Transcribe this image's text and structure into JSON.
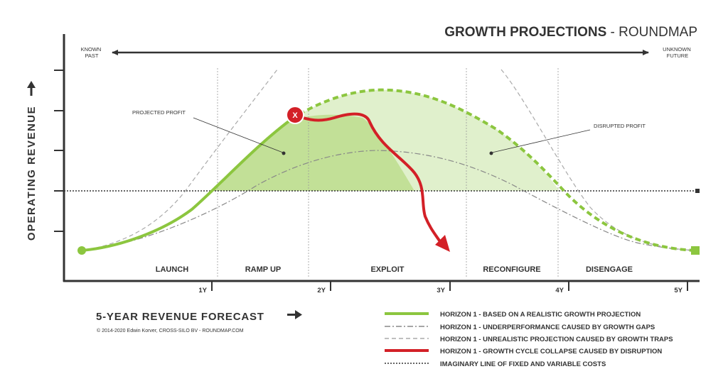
{
  "header": {
    "title_bold": "GROWTH PROJECTIONS",
    "title_sep": " - ",
    "title_light": "ROUNDMAP"
  },
  "timeline": {
    "left_label_lines": [
      "KNOWN",
      "PAST"
    ],
    "right_label_lines": [
      "UNKNOWN",
      "FUTURE"
    ]
  },
  "y_axis": {
    "label": "OPERATING REVENUE"
  },
  "x_axis": {
    "label": "5-YEAR REVENUE FORECAST",
    "ticks": [
      "1Y",
      "2Y",
      "3Y",
      "4Y",
      "5Y"
    ]
  },
  "phases": [
    "LAUNCH",
    "RAMP UP",
    "EXPLOIT",
    "RECONFIGURE",
    "DISENGAGE"
  ],
  "annotations": {
    "projected_profit": "PROJECTED PROFIT",
    "disrupted_profit": "DISRUPTED PROFIT",
    "disruption_marker": "X"
  },
  "copyright": "© 2014-2020 Edwin Korver, CROSS-SILO BV - ROUNDMAP.COM",
  "legend": [
    {
      "style": "green-solid",
      "color": "#8cc63f",
      "label": "HORIZON 1 - BASED ON A REALISTIC GROWTH PROJECTION"
    },
    {
      "style": "dash-dot",
      "color": "#888888",
      "label": "HORIZON 1 - UNDERPERFORMANCE CAUSED BY GROWTH GAPS"
    },
    {
      "style": "dashed",
      "color": "#aaaaaa",
      "label": "HORIZON 1 - UNREALISTIC PROJECTION CAUSED BY GROWTH TRAPS"
    },
    {
      "style": "red-solid",
      "color": "#d32027",
      "label": "HORIZON 1 - GROWTH CYCLE COLLAPSE CAUSED BY DISRUPTION"
    },
    {
      "style": "dotted",
      "color": "#333333",
      "label": "IMAGINARY LINE OF FIXED AND VARIABLE COSTS"
    }
  ],
  "colors": {
    "green": "#8cc63f",
    "green_fill": "#c7e3a2",
    "red": "#d32027",
    "axis": "#333333",
    "grey": "#888888"
  }
}
